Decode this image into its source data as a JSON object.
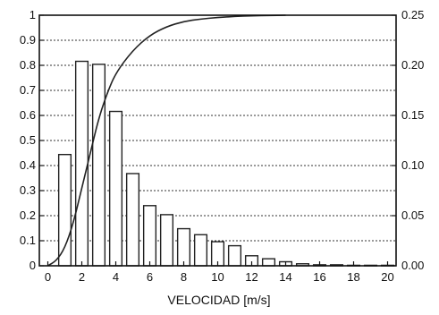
{
  "chart_data": {
    "type": "bar",
    "title": "",
    "xlabel": "VELOCIDAD [m/s]",
    "x_ticks": [
      "0",
      "2",
      "4",
      "6",
      "8",
      "10",
      "12",
      "14",
      "16",
      "18",
      "20"
    ],
    "xlim": [
      -0.5,
      20.5
    ],
    "ylim_left": [
      0,
      1
    ],
    "ylim_right": [
      0,
      0.25
    ],
    "y_left_ticks": [
      "0",
      "0.1",
      "0.2",
      "0.3",
      "0.4",
      "0.5",
      "0.6",
      "0.7",
      "0.8",
      "0.9",
      "1"
    ],
    "y_right_ticks": [
      "0.00",
      "0.05",
      "0.10",
      "0.15",
      "0.20",
      "0.25"
    ],
    "grid": "horizontal dotted",
    "colors": {
      "bar_fill": "#ffffff",
      "bar_edge": "#222222",
      "line": "#222222",
      "grid": "#333333"
    },
    "series": [
      {
        "type": "bar",
        "axis": "right",
        "x": [
          1,
          2,
          3,
          4,
          5,
          6,
          7,
          8,
          9,
          10,
          11,
          12,
          13,
          14,
          15,
          16,
          17,
          18,
          19,
          20
        ],
        "values": [
          0.111,
          0.204,
          0.201,
          0.154,
          0.092,
          0.06,
          0.051,
          0.037,
          0.031,
          0.024,
          0.02,
          0.01,
          0.007,
          0.004,
          0.002,
          0.001,
          0.001,
          0.0005,
          0.0005,
          0.0005
        ]
      },
      {
        "type": "line",
        "axis": "left",
        "x": [
          0,
          0.5,
          1,
          1.5,
          2,
          2.5,
          3,
          3.5,
          4,
          5,
          6,
          7,
          8,
          9,
          10,
          11,
          12,
          13,
          14
        ],
        "values": [
          0.0,
          0.02,
          0.07,
          0.17,
          0.31,
          0.45,
          0.59,
          0.69,
          0.77,
          0.86,
          0.92,
          0.955,
          0.975,
          0.985,
          0.991,
          0.995,
          0.998,
          0.999,
          1.0
        ]
      }
    ]
  }
}
